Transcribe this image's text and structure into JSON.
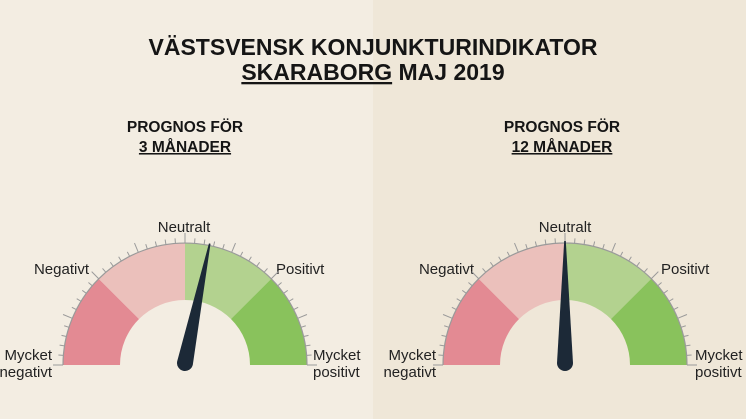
{
  "title": {
    "line1": "VÄSTSVENSK KONJUNKTURINDIKATOR",
    "region": "SKARABORG",
    "period": "MAJ 2019"
  },
  "colors": {
    "very_negative": "#e38a93",
    "negative": "#ebc0bb",
    "positive": "#b3d28f",
    "very_positive": "#89c25c",
    "needle": "#1c2937",
    "tick": "#9a9a9a"
  },
  "chart_data": [
    {
      "type": "gauge",
      "heading": "PROGNOS FÖR",
      "horizon": "3 MÅNADER",
      "value": 0.13,
      "range": [
        -1,
        1
      ],
      "labels": {
        "very_negative": [
          "Mycket",
          "negativt"
        ],
        "negative": "Negativt",
        "neutral": "Neutralt",
        "positive": "Positivt",
        "very_positive": [
          "Mycket",
          "positivt"
        ]
      }
    },
    {
      "type": "gauge",
      "heading": "PROGNOS FÖR",
      "horizon": "12 MÅNADER",
      "value": 0.0,
      "range": [
        -1,
        1
      ],
      "labels": {
        "very_negative": [
          "Mycket",
          "negativt"
        ],
        "negative": "Negativt",
        "neutral": "Neutralt",
        "positive": "Positivt",
        "very_positive": [
          "Mycket",
          "positivt"
        ]
      }
    }
  ]
}
